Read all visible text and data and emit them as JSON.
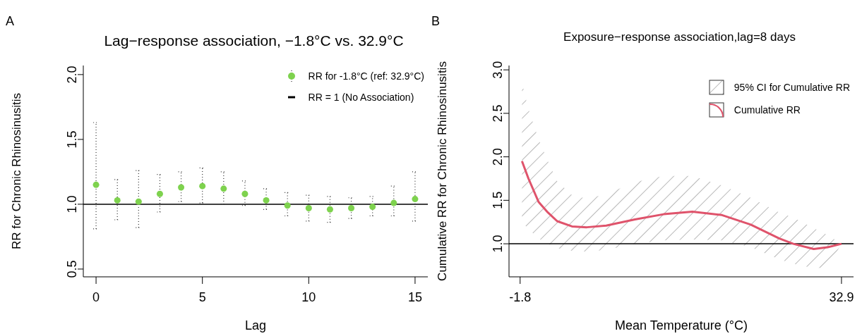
{
  "chart_data": [
    {
      "type": "scatter",
      "title": "Lag−response association, −1.8°C vs. 32.9°C",
      "xlabel": "Lag",
      "ylabel": "RR for Chronic Rhinosinusitis",
      "annotations": [
        "A"
      ],
      "xlim": [
        -0.6,
        15.6
      ],
      "xticks": [
        0,
        5,
        10,
        15
      ],
      "ylim": [
        0.44,
        2.07
      ],
      "yticks": [
        0.5,
        {
          "value": 1,
          "label": "1.0"
        },
        1.5,
        {
          "value": 2,
          "label": "2.0"
        }
      ],
      "grid": false,
      "legend": "top right",
      "marker": "circle",
      "series": [
        {
          "name": "RR for -1.8°C (ref: 32.9°C)",
          "color": "#7ed24e",
          "x": [
            0,
            1,
            2,
            3,
            4,
            5,
            6,
            7,
            8,
            9,
            10,
            11,
            12,
            13,
            14,
            15
          ],
          "values": [
            1.15,
            1.03,
            1.02,
            1.08,
            1.13,
            1.14,
            1.12,
            1.08,
            1.03,
            0.99,
            0.97,
            0.96,
            0.97,
            0.98,
            1.01,
            1.04
          ],
          "errors": [
            [
              0.81,
              1.63
            ],
            [
              0.88,
              1.19
            ],
            [
              0.82,
              1.26
            ],
            [
              0.94,
              1.23
            ],
            [
              1.02,
              1.25
            ],
            [
              1.01,
              1.28
            ],
            [
              1.0,
              1.25
            ],
            [
              0.99,
              1.18
            ],
            [
              0.96,
              1.12
            ],
            [
              0.91,
              1.09
            ],
            [
              0.87,
              1.07
            ],
            [
              0.86,
              1.06
            ],
            [
              0.89,
              1.05
            ],
            [
              0.91,
              1.06
            ],
            [
              0.91,
              1.14
            ],
            [
              0.87,
              1.25
            ]
          ]
        }
      ],
      "ref_lines": [
        {
          "axis": "y",
          "value": 1,
          "label": "RR = 1 (No Association)",
          "color": "#000000"
        }
      ]
    },
    {
      "type": "line",
      "title": "Exposure−response association,lag=8 days",
      "xlabel": "Mean Temperature (°C)",
      "ylabel": "Cumulative RR for Chronic Rhinosinusitis",
      "annotations": [
        "B",
        "95% CI for Cumulative RR"
      ],
      "xlim": [
        -3.0,
        34.2
      ],
      "xticks": [
        -1.8,
        32.9
      ],
      "ylim": [
        0.62,
        3.05
      ],
      "yticks": [
        {
          "value": 1,
          "label": "1.0"
        },
        1.5,
        {
          "value": 2,
          "label": "2.0"
        },
        2.5,
        {
          "value": 3,
          "label": "3.0"
        }
      ],
      "grid": false,
      "legend": "top right",
      "line_style": "solid",
      "marker": "none",
      "series": [
        {
          "name": "Cumulative RR",
          "color": "#df536b",
          "x": [
            -1.6,
            -0.9,
            0.2,
            1.2,
            2.2,
            3.8,
            5.4,
            7.5,
            10.6,
            13.7,
            16.8,
            20.0,
            23.1,
            26.2,
            27.7,
            29.9,
            31.4,
            32.9
          ],
          "values": [
            1.95,
            1.75,
            1.48,
            1.36,
            1.26,
            1.2,
            1.19,
            1.21,
            1.28,
            1.34,
            1.37,
            1.33,
            1.22,
            1.06,
            1.0,
            0.94,
            0.96,
            1.0
          ],
          "lower": [
            1.25,
            1.17,
            1.06,
            1.0,
            0.95,
            0.92,
            0.91,
            0.93,
            1.0,
            1.04,
            1.05,
            1.04,
            0.96,
            0.82,
            0.77,
            0.72,
            0.73,
            1.0
          ],
          "upper": [
            2.85,
            2.55,
            2.2,
            1.95,
            1.72,
            1.56,
            1.52,
            1.57,
            1.71,
            1.78,
            1.78,
            1.67,
            1.53,
            1.36,
            1.3,
            1.18,
            1.1,
            1.0
          ]
        }
      ],
      "ref_lines": [
        {
          "axis": "y",
          "value": 1,
          "color": "#000000"
        }
      ]
    }
  ]
}
